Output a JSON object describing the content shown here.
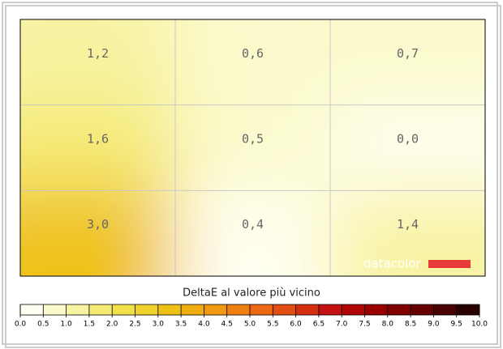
{
  "chart_data": {
    "type": "heatmap",
    "title": "DeltaE al valore più vicino",
    "brand": "datacolor",
    "values": [
      [
        1.2,
        0.6,
        0.7
      ],
      [
        1.6,
        0.5,
        0.0
      ],
      [
        3.0,
        0.4,
        1.4
      ]
    ],
    "value_labels": [
      [
        "1,2",
        "0,6",
        "0,7"
      ],
      [
        "1,6",
        "0,5",
        "0,0"
      ],
      [
        "3,0",
        "0,4",
        "1,4"
      ]
    ],
    "colorbar_ticks": [
      {
        "value": 0,
        "label": "0.0"
      },
      {
        "value": 0.5,
        "label": "0.5"
      },
      {
        "value": 1,
        "label": "1.0"
      },
      {
        "value": 1.5,
        "label": "1.5"
      },
      {
        "value": 2,
        "label": "2.0"
      },
      {
        "value": 2.5,
        "label": "2.5"
      },
      {
        "value": 3,
        "label": "3.0"
      },
      {
        "value": 3.5,
        "label": "3.5"
      },
      {
        "value": 4,
        "label": "4.0"
      },
      {
        "value": 4.5,
        "label": "4.5"
      },
      {
        "value": 5,
        "label": "5.0"
      },
      {
        "value": 5.5,
        "label": "5.5"
      },
      {
        "value": 6,
        "label": "6.0"
      },
      {
        "value": 6.5,
        "label": "6.5"
      },
      {
        "value": 7,
        "label": "7.0"
      },
      {
        "value": 7.5,
        "label": "7.5"
      },
      {
        "value": 8,
        "label": "8.0"
      },
      {
        "value": 8.5,
        "label": "8.5"
      },
      {
        "value": 9,
        "label": "9.0"
      },
      {
        "value": 9.5,
        "label": "9.5"
      },
      {
        "value": 10,
        "label": "10.0"
      }
    ],
    "colorscale": [
      "#fffff2",
      "#fbfacc",
      "#f8f3a2",
      "#f5ea72",
      "#f2e04a",
      "#f0d02a",
      "#efc116",
      "#f0ad10",
      "#f09812",
      "#f07f12",
      "#ec6812",
      "#e04e12",
      "#d43010",
      "#c41010",
      "#b00606",
      "#980000",
      "#800000",
      "#660000",
      "#480000",
      "#280000"
    ],
    "grid": true
  }
}
